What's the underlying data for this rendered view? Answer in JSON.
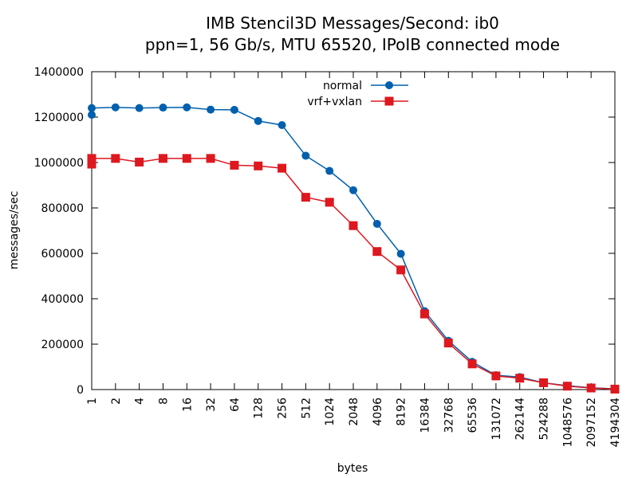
{
  "chart_data": {
    "type": "line",
    "title": [
      "IMB Stencil3D Messages/Second: ib0",
      "ppn=1, 56 Gb/s, MTU 65520, IPoIB connected mode"
    ],
    "xlabel": "bytes",
    "ylabel": "messages/sec",
    "categories": [
      "1",
      "2",
      "4",
      "8",
      "16",
      "32",
      "64",
      "128",
      "256",
      "512",
      "1024",
      "2048",
      "4096",
      "8192",
      "16384",
      "32768",
      "65536",
      "131072",
      "262144",
      "524288",
      "1048576",
      "2097152",
      "4194304"
    ],
    "ylim": [
      0,
      1400000
    ],
    "yticks": [
      "0",
      "200000",
      "400000",
      "600000",
      "800000",
      "1000000",
      "1200000",
      "1400000"
    ],
    "legend_position": "top-center",
    "grid": false,
    "series": [
      {
        "name": "normal",
        "color": "#0060ad",
        "marker": "circle",
        "points": [
          [
            0,
            1210000
          ],
          [
            0,
            1240000
          ],
          [
            1,
            1243000
          ],
          [
            2,
            1240000
          ],
          [
            3,
            1242000
          ],
          [
            4,
            1243000
          ],
          [
            5,
            1233000
          ],
          [
            6,
            1232000
          ],
          [
            7,
            1183000
          ],
          [
            8,
            1165000
          ],
          [
            9,
            1030000
          ],
          [
            10,
            963000
          ],
          [
            11,
            878000
          ],
          [
            12,
            730000
          ],
          [
            13,
            598000
          ],
          [
            14,
            345000
          ],
          [
            15,
            215000
          ],
          [
            16,
            122000
          ],
          [
            17,
            63000
          ],
          [
            18,
            55000
          ],
          [
            19,
            30000
          ],
          [
            20,
            17000
          ],
          [
            21,
            8000
          ],
          [
            22,
            3000
          ]
        ]
      },
      {
        "name": "vrf+vxlan",
        "color": "#dd181f",
        "marker": "square",
        "points": [
          [
            0,
            993000
          ],
          [
            0,
            1018000
          ],
          [
            1,
            1018000
          ],
          [
            2,
            1002000
          ],
          [
            3,
            1018000
          ],
          [
            4,
            1018000
          ],
          [
            5,
            1018000
          ],
          [
            6,
            988000
          ],
          [
            7,
            985000
          ],
          [
            8,
            975000
          ],
          [
            9,
            847000
          ],
          [
            10,
            825000
          ],
          [
            11,
            722000
          ],
          [
            12,
            608000
          ],
          [
            13,
            527000
          ],
          [
            14,
            333000
          ],
          [
            15,
            205000
          ],
          [
            16,
            113000
          ],
          [
            17,
            60000
          ],
          [
            18,
            50000
          ],
          [
            19,
            30000
          ],
          [
            20,
            15000
          ],
          [
            21,
            7000
          ],
          [
            22,
            2000
          ]
        ]
      }
    ]
  }
}
